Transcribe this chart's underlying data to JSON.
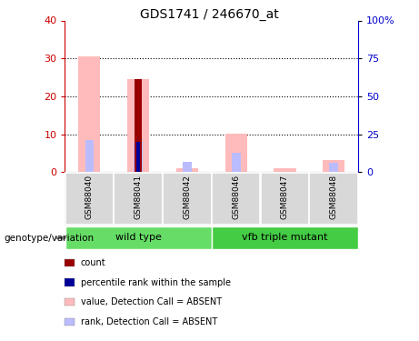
{
  "title": "GDS1741 / 246670_at",
  "samples": [
    "GSM88040",
    "GSM88041",
    "GSM88042",
    "GSM88046",
    "GSM88047",
    "GSM88048"
  ],
  "value_absent": [
    30.5,
    24.5,
    1.0,
    10.2,
    1.0,
    3.2
  ],
  "rank_absent": [
    8.5,
    8.0,
    2.8,
    5.2,
    0.0,
    2.5
  ],
  "count_value": [
    0,
    24.5,
    0,
    0,
    0,
    0
  ],
  "percentile_rank": [
    0,
    8.0,
    0,
    0,
    0,
    0
  ],
  "left_ylim": [
    0,
    40
  ],
  "right_ylim": [
    0,
    100
  ],
  "left_yticks": [
    0,
    10,
    20,
    30,
    40
  ],
  "right_yticks": [
    0,
    25,
    50,
    75,
    100
  ],
  "right_yticklabels": [
    "0",
    "25",
    "50",
    "75",
    "100%"
  ],
  "color_count": "#990000",
  "color_percentile": "#000099",
  "color_value_absent": "#ffbbbb",
  "color_rank_absent": "#bbbbff",
  "color_left_axis": "#cc0000",
  "color_right_axis": "#0000cc",
  "grid_color": "#000000",
  "wt_color": "#66dd66",
  "mutant_color": "#44cc44",
  "sample_box_color": "#cccccc",
  "label_count": "count",
  "label_percentile": "percentile rank within the sample",
  "label_value_absent": "value, Detection Call = ABSENT",
  "label_rank_absent": "rank, Detection Call = ABSENT",
  "genotype_label": "genotype/variation"
}
